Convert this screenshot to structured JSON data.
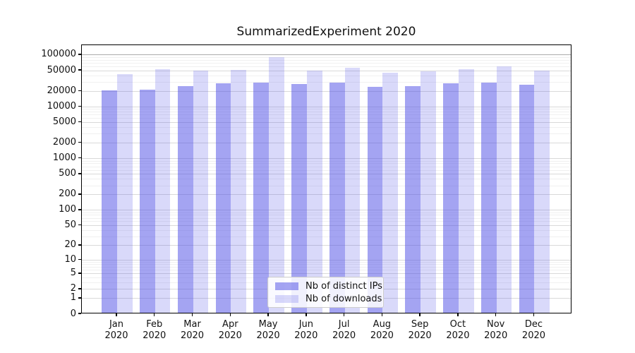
{
  "title": "SummarizedExperiment 2020",
  "colors": {
    "bar_ips_fill": "rgba(80,80,230,0.52)",
    "bar_downloads_fill": "rgba(80,80,230,0.22)",
    "gridline_major": "#d9d9d9",
    "gridline_minor": "#f0f0f0",
    "gridline_top_decade": "#ababab",
    "axis_frame": "#000000"
  },
  "chart_data": {
    "type": "bar",
    "title": "SummarizedExperiment 2020",
    "categories": [
      "Jan 2020",
      "Feb 2020",
      "Mar 2020",
      "Apr 2020",
      "May 2020",
      "Jun 2020",
      "Jul 2020",
      "Aug 2020",
      "Sep 2020",
      "Oct 2020",
      "Nov 2020",
      "Dec 2020"
    ],
    "series": [
      {
        "name": "Nb of distinct IPs",
        "values": [
          20800,
          21500,
          25200,
          28600,
          29300,
          27000,
          29000,
          24200,
          25200,
          28000,
          29000,
          26300
        ]
      },
      {
        "name": "Nb of downloads",
        "values": [
          42800,
          52800,
          49600,
          51200,
          91000,
          49500,
          55500,
          44500,
          47400,
          52700,
          60000,
          49400
        ]
      }
    ],
    "yscale": "log1p",
    "yticks": [
      0,
      1,
      2,
      5,
      10,
      20,
      50,
      100,
      200,
      500,
      1000,
      2000,
      5000,
      10000,
      20000,
      50000,
      100000
    ],
    "ylim": [
      0,
      155000
    ],
    "xlabel": "",
    "ylabel": "",
    "grid": true,
    "legend_position": "lower center (inside plot)"
  }
}
